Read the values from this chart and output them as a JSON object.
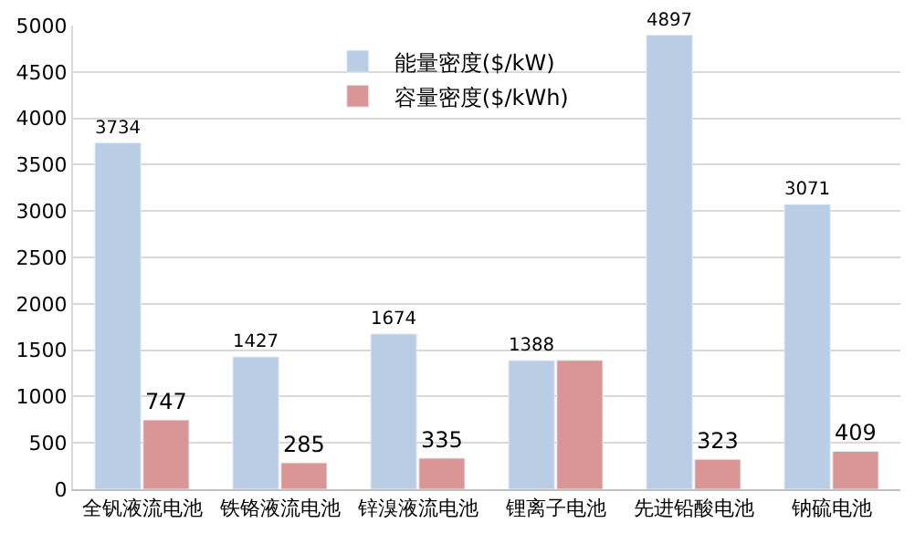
{
  "chart_data": {
    "type": "bar",
    "categories": [
      "全钒液流电池",
      "铁铬液流电池",
      "锌溴液流电池",
      "锂离子电池",
      "先进铅酸电池",
      "钠硫电池"
    ],
    "series": [
      {
        "name": "能量密度($/kW)",
        "color": "#b9cde5",
        "values": [
          3734,
          1427,
          1674,
          1388,
          4897,
          3071
        ],
        "value_labels": [
          "3734",
          "1427",
          "1674",
          "1388",
          "4897",
          "3071"
        ]
      },
      {
        "name": "容量密度($/kWh)",
        "color": "#d99694",
        "values": [
          747,
          285,
          335,
          1390,
          323,
          409
        ],
        "value_labels": [
          "747",
          "285",
          "335",
          null,
          "323",
          "409"
        ]
      }
    ],
    "ylim": [
      0,
      5000
    ],
    "yticks": [
      0,
      500,
      1000,
      1500,
      2000,
      2500,
      3000,
      3500,
      4000,
      4500,
      5000
    ],
    "grid": "y",
    "legend": "top"
  }
}
